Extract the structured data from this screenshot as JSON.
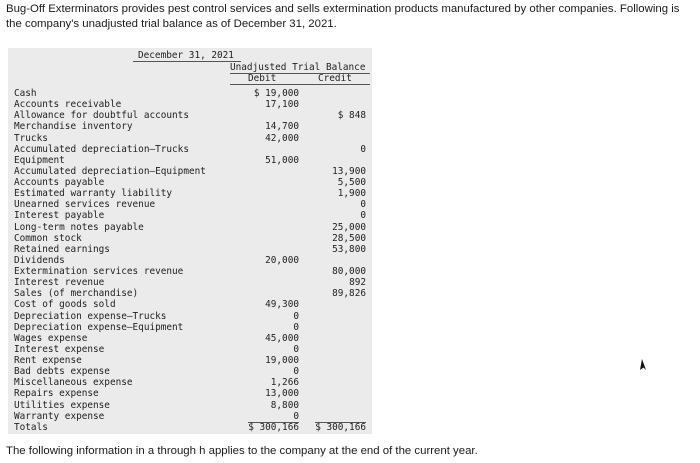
{
  "intro": {
    "line1": "Bug-Off Exterminators provides pest control services and sells extermination products manufactured by other companies. Following is",
    "line2": "the company's unadjusted trial balance as of December 31, 2021."
  },
  "trial_balance": {
    "date_label": "December 31, 2021",
    "title": "Unadjusted Trial Balance",
    "debit_header": "Debit",
    "credit_header": "Credit",
    "rows": [
      {
        "account": "Cash",
        "debit": "$ 19,000",
        "credit": ""
      },
      {
        "account": "Accounts receivable",
        "debit": "17,100",
        "credit": ""
      },
      {
        "account": "Allowance for doubtful accounts",
        "debit": "",
        "credit": "$ 848"
      },
      {
        "account": "Merchandise inventory",
        "debit": "14,700",
        "credit": ""
      },
      {
        "account": "Trucks",
        "debit": "42,000",
        "credit": ""
      },
      {
        "account": "Accumulated depreciation—Trucks",
        "debit": "",
        "credit": "0"
      },
      {
        "account": "Equipment",
        "debit": "51,000",
        "credit": ""
      },
      {
        "account": "Accumulated depreciation—Equipment",
        "debit": "",
        "credit": "13,900"
      },
      {
        "account": "Accounts payable",
        "debit": "",
        "credit": "5,500"
      },
      {
        "account": "Estimated warranty liability",
        "debit": "",
        "credit": "1,900"
      },
      {
        "account": "Unearned services revenue",
        "debit": "",
        "credit": "0"
      },
      {
        "account": "Interest payable",
        "debit": "",
        "credit": "0"
      },
      {
        "account": "Long-term notes payable",
        "debit": "",
        "credit": "25,000"
      },
      {
        "account": "Common stock",
        "debit": "",
        "credit": "28,500"
      },
      {
        "account": "Retained earnings",
        "debit": "",
        "credit": "53,800"
      },
      {
        "account": "Dividends",
        "debit": "20,000",
        "credit": ""
      },
      {
        "account": "Extermination services revenue",
        "debit": "",
        "credit": "80,000"
      },
      {
        "account": "Interest revenue",
        "debit": "",
        "credit": "892"
      },
      {
        "account": "Sales (of merchandise)",
        "debit": "",
        "credit": "89,826"
      },
      {
        "account": "Cost of goods sold",
        "debit": "49,300",
        "credit": ""
      },
      {
        "account": "Depreciation expense—Trucks",
        "debit": "0",
        "credit": ""
      },
      {
        "account": "Depreciation expense—Equipment",
        "debit": "0",
        "credit": ""
      },
      {
        "account": "Wages expense",
        "debit": "45,000",
        "credit": ""
      },
      {
        "account": "Interest expense",
        "debit": "0",
        "credit": ""
      },
      {
        "account": "Rent expense",
        "debit": "19,000",
        "credit": ""
      },
      {
        "account": "Bad debts expense",
        "debit": "0",
        "credit": ""
      },
      {
        "account": "Miscellaneous expense",
        "debit": "1,266",
        "credit": ""
      },
      {
        "account": "Repairs expense",
        "debit": "13,000",
        "credit": ""
      },
      {
        "account": "Utilities expense",
        "debit": "8,800",
        "credit": ""
      },
      {
        "account": "Warranty expense",
        "debit": "0",
        "credit": ""
      },
      {
        "account": "Totals",
        "debit": "$ 300,166",
        "credit": "$ 300,166",
        "total": true
      }
    ]
  },
  "footer": {
    "text": "The following information in a through h applies to the company at the end of the current year."
  }
}
